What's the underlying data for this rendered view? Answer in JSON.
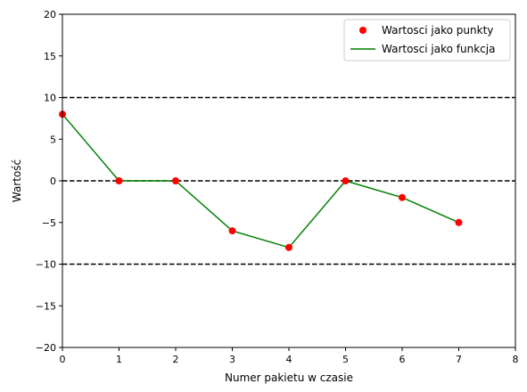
{
  "chart_data": {
    "type": "line",
    "xlabel": "Numer pakietu w czasie",
    "ylabel": "Wartość",
    "xlim": [
      0,
      8
    ],
    "ylim": [
      -20,
      20
    ],
    "xticks": [
      0,
      1,
      2,
      3,
      4,
      5,
      6,
      7,
      8
    ],
    "yticks": [
      -20,
      -15,
      -10,
      -5,
      0,
      5,
      10,
      15,
      20
    ],
    "x": [
      0,
      1,
      2,
      3,
      4,
      5,
      6,
      7
    ],
    "series": [
      {
        "name": "Wartosci jako punkty",
        "style": "points",
        "color": "#ff0000",
        "values": [
          8,
          0,
          0,
          -6,
          -8,
          0,
          -2,
          -5
        ]
      },
      {
        "name": "Wartosci jako funkcja",
        "style": "line",
        "color": "#008000",
        "values": [
          8,
          0,
          0,
          -6,
          -8,
          0,
          -2,
          -5
        ]
      }
    ],
    "reference_lines": [
      {
        "y": 10,
        "style": "dashed",
        "color": "#000000"
      },
      {
        "y": 0,
        "style": "dashed",
        "color": "#000000"
      },
      {
        "y": -10,
        "style": "dashed",
        "color": "#000000"
      }
    ],
    "grid": false,
    "legend_position": "top-right"
  }
}
